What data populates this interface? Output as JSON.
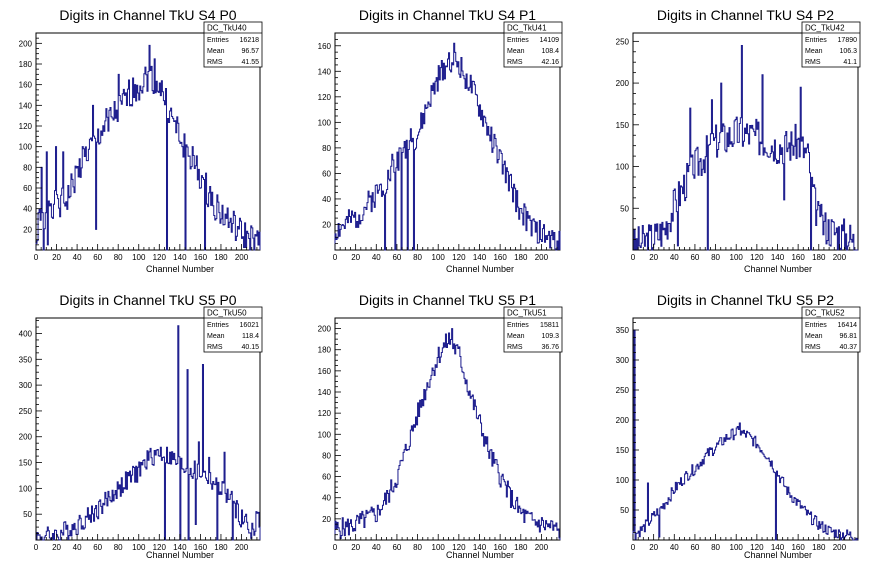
{
  "chart_data": [
    {
      "type": "histogram",
      "title": "Digits in Channel TkU S4 P0",
      "xlabel": "Channel Number",
      "xlim": [
        0,
        218
      ],
      "ylim": [
        0,
        210
      ],
      "xticks": [
        0,
        20,
        40,
        60,
        80,
        100,
        120,
        140,
        160,
        180,
        200
      ],
      "yticks": [
        20,
        40,
        60,
        80,
        100,
        120,
        140,
        160,
        180,
        200
      ],
      "stats": {
        "name": "DC_TkU40",
        "entries": "16218",
        "mean": "96.57",
        "rms": "41.55"
      },
      "anchors": [
        [
          0,
          5
        ],
        [
          4,
          40
        ],
        [
          8,
          20
        ],
        [
          12,
          50
        ],
        [
          20,
          40
        ],
        [
          30,
          50
        ],
        [
          40,
          75
        ],
        [
          50,
          95
        ],
        [
          60,
          110
        ],
        [
          70,
          125
        ],
        [
          80,
          135
        ],
        [
          90,
          150
        ],
        [
          100,
          160
        ],
        [
          110,
          170
        ],
        [
          120,
          160
        ],
        [
          130,
          130
        ],
        [
          140,
          110
        ],
        [
          150,
          90
        ],
        [
          160,
          70
        ],
        [
          170,
          50
        ],
        [
          180,
          35
        ],
        [
          190,
          25
        ],
        [
          200,
          15
        ],
        [
          210,
          10
        ],
        [
          216,
          5
        ]
      ],
      "spikes": [
        [
          5,
          80
        ],
        [
          7,
          0
        ],
        [
          10,
          95
        ],
        [
          11,
          5
        ],
        [
          19,
          100
        ],
        [
          26,
          95
        ],
        [
          45,
          100
        ],
        [
          55,
          140
        ],
        [
          58,
          20
        ],
        [
          70,
          115
        ],
        [
          80,
          170
        ],
        [
          96,
          160
        ],
        [
          110,
          198
        ],
        [
          115,
          185
        ],
        [
          127,
          0
        ],
        [
          142,
          100
        ],
        [
          145,
          0
        ],
        [
          164,
          0
        ]
      ],
      "noise": 15,
      "seed": 1
    },
    {
      "type": "histogram",
      "title": "Digits in Channel TkU S4 P1",
      "xlabel": "Channel Number",
      "xlim": [
        0,
        218
      ],
      "ylim": [
        0,
        170
      ],
      "xticks": [
        0,
        20,
        40,
        60,
        80,
        100,
        120,
        140,
        160,
        180,
        200
      ],
      "yticks": [
        20,
        40,
        60,
        80,
        100,
        120,
        140,
        160
      ],
      "stats": {
        "name": "DC_TkU41",
        "entries": "14109",
        "mean": "108.4",
        "rms": "42.16"
      },
      "anchors": [
        [
          0,
          15
        ],
        [
          10,
          20
        ],
        [
          20,
          25
        ],
        [
          30,
          35
        ],
        [
          40,
          45
        ],
        [
          50,
          55
        ],
        [
          60,
          70
        ],
        [
          70,
          80
        ],
        [
          80,
          90
        ],
        [
          90,
          115
        ],
        [
          100,
          135
        ],
        [
          110,
          150
        ],
        [
          120,
          145
        ],
        [
          130,
          130
        ],
        [
          140,
          110
        ],
        [
          150,
          90
        ],
        [
          160,
          70
        ],
        [
          170,
          50
        ],
        [
          180,
          30
        ],
        [
          190,
          18
        ],
        [
          200,
          12
        ],
        [
          210,
          8
        ],
        [
          216,
          5
        ]
      ],
      "spikes": [
        [
          48,
          0
        ],
        [
          55,
          75
        ],
        [
          58,
          0
        ],
        [
          62,
          80
        ],
        [
          64,
          0
        ],
        [
          67,
          85
        ],
        [
          70,
          0
        ],
        [
          73,
          95
        ],
        [
          76,
          0
        ],
        [
          80,
          90
        ],
        [
          115,
          162
        ]
      ],
      "noise": 10,
      "seed": 2
    },
    {
      "type": "histogram",
      "title": "Digits in Channel TkU S4 P2",
      "xlabel": "Channel Number",
      "xlim": [
        0,
        218
      ],
      "ylim": [
        0,
        260
      ],
      "xticks": [
        0,
        20,
        40,
        60,
        80,
        100,
        120,
        140,
        160,
        180,
        200
      ],
      "yticks": [
        50,
        100,
        150,
        200,
        250
      ],
      "stats": {
        "name": "DC_TkU42",
        "entries": "17890",
        "mean": "106.3",
        "rms": "41.1"
      },
      "anchors": [
        [
          0,
          5
        ],
        [
          10,
          10
        ],
        [
          20,
          15
        ],
        [
          30,
          25
        ],
        [
          40,
          55
        ],
        [
          50,
          80
        ],
        [
          60,
          100
        ],
        [
          70,
          115
        ],
        [
          80,
          130
        ],
        [
          90,
          135
        ],
        [
          100,
          140
        ],
        [
          110,
          140
        ],
        [
          120,
          135
        ],
        [
          130,
          130
        ],
        [
          140,
          125
        ],
        [
          150,
          125
        ],
        [
          160,
          130
        ],
        [
          170,
          110
        ],
        [
          175,
          60
        ],
        [
          180,
          35
        ],
        [
          190,
          25
        ],
        [
          200,
          20
        ],
        [
          210,
          15
        ],
        [
          216,
          5
        ]
      ],
      "spikes": [
        [
          43,
          5
        ],
        [
          55,
          170
        ],
        [
          58,
          90
        ],
        [
          72,
          0
        ],
        [
          76,
          180
        ],
        [
          85,
          200
        ],
        [
          105,
          245
        ],
        [
          125,
          210
        ],
        [
          146,
          60
        ],
        [
          162,
          195
        ],
        [
          172,
          0
        ],
        [
          181,
          40
        ]
      ],
      "noise": 22,
      "seed": 3
    },
    {
      "type": "histogram",
      "title": "Digits in Channel TkU S5 P0",
      "xlabel": "Channel Number",
      "xlim": [
        0,
        218
      ],
      "ylim": [
        0,
        430
      ],
      "xticks": [
        0,
        20,
        40,
        60,
        80,
        100,
        120,
        140,
        160,
        180,
        200
      ],
      "yticks": [
        50,
        100,
        150,
        200,
        250,
        300,
        350,
        400
      ],
      "stats": {
        "name": "DC_TkU50",
        "entries": "16021",
        "mean": "118.4",
        "rms": "40.15"
      },
      "anchors": [
        [
          0,
          5
        ],
        [
          20,
          10
        ],
        [
          40,
          30
        ],
        [
          60,
          60
        ],
        [
          80,
          100
        ],
        [
          100,
          135
        ],
        [
          110,
          160
        ],
        [
          120,
          170
        ],
        [
          130,
          160
        ],
        [
          140,
          145
        ],
        [
          150,
          135
        ],
        [
          160,
          130
        ],
        [
          170,
          115
        ],
        [
          180,
          100
        ],
        [
          190,
          75
        ],
        [
          200,
          40
        ],
        [
          205,
          20
        ],
        [
          210,
          20
        ],
        [
          216,
          40
        ]
      ],
      "spikes": [
        [
          125,
          0
        ],
        [
          130,
          170
        ],
        [
          138,
          415
        ],
        [
          140,
          0
        ],
        [
          147,
          330
        ],
        [
          148,
          0
        ],
        [
          155,
          30
        ],
        [
          158,
          190
        ],
        [
          162,
          340
        ],
        [
          168,
          160
        ],
        [
          176,
          0
        ],
        [
          183,
          170
        ],
        [
          191,
          0
        ],
        [
          204,
          50
        ],
        [
          214,
          55
        ]
      ],
      "noise": 20,
      "seed": 4
    },
    {
      "type": "histogram",
      "title": "Digits in Channel TkU S5 P1",
      "xlabel": "Channel Number",
      "xlim": [
        0,
        218
      ],
      "ylim": [
        0,
        210
      ],
      "xticks": [
        0,
        20,
        40,
        60,
        80,
        100,
        120,
        140,
        160,
        180,
        200
      ],
      "yticks": [
        20,
        40,
        60,
        80,
        100,
        120,
        140,
        160,
        180,
        200
      ],
      "stats": {
        "name": "DC_TkU51",
        "entries": "15811",
        "mean": "109.3",
        "rms": "36.76"
      },
      "anchors": [
        [
          0,
          10
        ],
        [
          10,
          12
        ],
        [
          20,
          15
        ],
        [
          30,
          20
        ],
        [
          40,
          25
        ],
        [
          50,
          40
        ],
        [
          60,
          60
        ],
        [
          70,
          90
        ],
        [
          80,
          120
        ],
        [
          90,
          150
        ],
        [
          100,
          175
        ],
        [
          110,
          190
        ],
        [
          120,
          175
        ],
        [
          130,
          140
        ],
        [
          140,
          110
        ],
        [
          150,
          80
        ],
        [
          160,
          60
        ],
        [
          170,
          40
        ],
        [
          180,
          25
        ],
        [
          190,
          18
        ],
        [
          200,
          15
        ],
        [
          210,
          12
        ],
        [
          216,
          8
        ]
      ],
      "spikes": [
        [
          113,
          200
        ]
      ],
      "noise": 10,
      "seed": 5
    },
    {
      "type": "histogram",
      "title": "Digits in Channel TkU S5 P2",
      "xlabel": "Channel Number",
      "xlim": [
        0,
        218
      ],
      "ylim": [
        0,
        370
      ],
      "xticks": [
        0,
        20,
        40,
        60,
        80,
        100,
        120,
        140,
        160,
        180,
        200
      ],
      "yticks": [
        50,
        100,
        150,
        200,
        250,
        300,
        350
      ],
      "stats": {
        "name": "DC_TkU52",
        "entries": "16414",
        "mean": "96.81",
        "rms": "40.37"
      },
      "anchors": [
        [
          0,
          10
        ],
        [
          2,
          10
        ],
        [
          10,
          20
        ],
        [
          20,
          40
        ],
        [
          30,
          60
        ],
        [
          40,
          85
        ],
        [
          50,
          105
        ],
        [
          60,
          120
        ],
        [
          70,
          140
        ],
        [
          80,
          155
        ],
        [
          90,
          170
        ],
        [
          100,
          180
        ],
        [
          110,
          175
        ],
        [
          120,
          160
        ],
        [
          130,
          140
        ],
        [
          140,
          110
        ],
        [
          150,
          80
        ],
        [
          160,
          60
        ],
        [
          170,
          40
        ],
        [
          180,
          25
        ],
        [
          190,
          15
        ],
        [
          200,
          10
        ],
        [
          210,
          8
        ],
        [
          216,
          5
        ]
      ],
      "spikes": [
        [
          1,
          350
        ],
        [
          14,
          95
        ],
        [
          25,
          5
        ],
        [
          103,
          195
        ],
        [
          138,
          0
        ]
      ],
      "noise": 10,
      "seed": 6
    }
  ]
}
